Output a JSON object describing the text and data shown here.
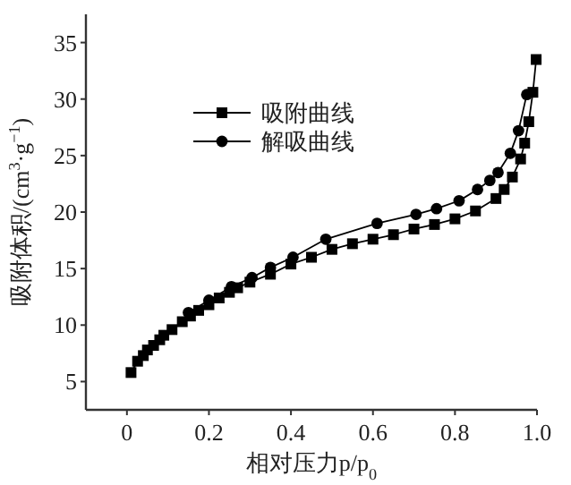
{
  "chart_data": {
    "type": "line",
    "xlabel": "相对压力p/p$_{0}$",
    "ylabel": "吸附体积/(cm$^{3}$·g$^{−1}$)",
    "xlim": [
      -0.1,
      1.0
    ],
    "ylim": [
      2.5,
      37.5
    ],
    "xticks": [
      0,
      0.2,
      0.4,
      0.6,
      0.8,
      {
        "value": 1.0,
        "label": "1.0"
      }
    ],
    "yticks": [
      5,
      10,
      15,
      20,
      25,
      30,
      35
    ],
    "grid": false,
    "legend": "top left",
    "line_style": "solid",
    "series": [
      {
        "name": "吸附曲线",
        "color": "#000000",
        "marker": "square",
        "x": [
          0.01,
          0.026,
          0.04,
          0.05,
          0.065,
          0.08,
          0.09,
          0.11,
          0.135,
          0.155,
          0.175,
          0.2,
          0.225,
          0.25,
          0.27,
          0.3,
          0.35,
          0.4,
          0.45,
          0.5,
          0.55,
          0.6,
          0.65,
          0.7,
          0.75,
          0.8,
          0.85,
          0.9,
          0.92,
          0.94,
          0.96,
          0.97,
          0.98,
          0.99,
          0.998
        ],
        "values": [
          5.8,
          6.8,
          7.3,
          7.8,
          8.2,
          8.7,
          9.1,
          9.6,
          10.3,
          10.8,
          11.3,
          11.8,
          12.4,
          12.9,
          13.3,
          13.8,
          14.5,
          15.4,
          16.0,
          16.7,
          17.2,
          17.6,
          18.0,
          18.5,
          18.9,
          19.4,
          20.1,
          21.2,
          22.0,
          23.1,
          24.7,
          26.1,
          28.0,
          30.6,
          33.5
        ]
      },
      {
        "name": "解吸曲线",
        "color": "#000000",
        "marker": "circle",
        "x": [
          0.975,
          0.955,
          0.935,
          0.905,
          0.885,
          0.855,
          0.81,
          0.755,
          0.705,
          0.61,
          0.485,
          0.405,
          0.35,
          0.305,
          0.255,
          0.2,
          0.15
        ],
        "values": [
          30.4,
          27.2,
          25.2,
          23.5,
          22.8,
          22.0,
          21.0,
          20.3,
          19.8,
          19.0,
          17.6,
          16.0,
          15.1,
          14.2,
          13.4,
          12.2,
          11.1
        ]
      }
    ]
  }
}
